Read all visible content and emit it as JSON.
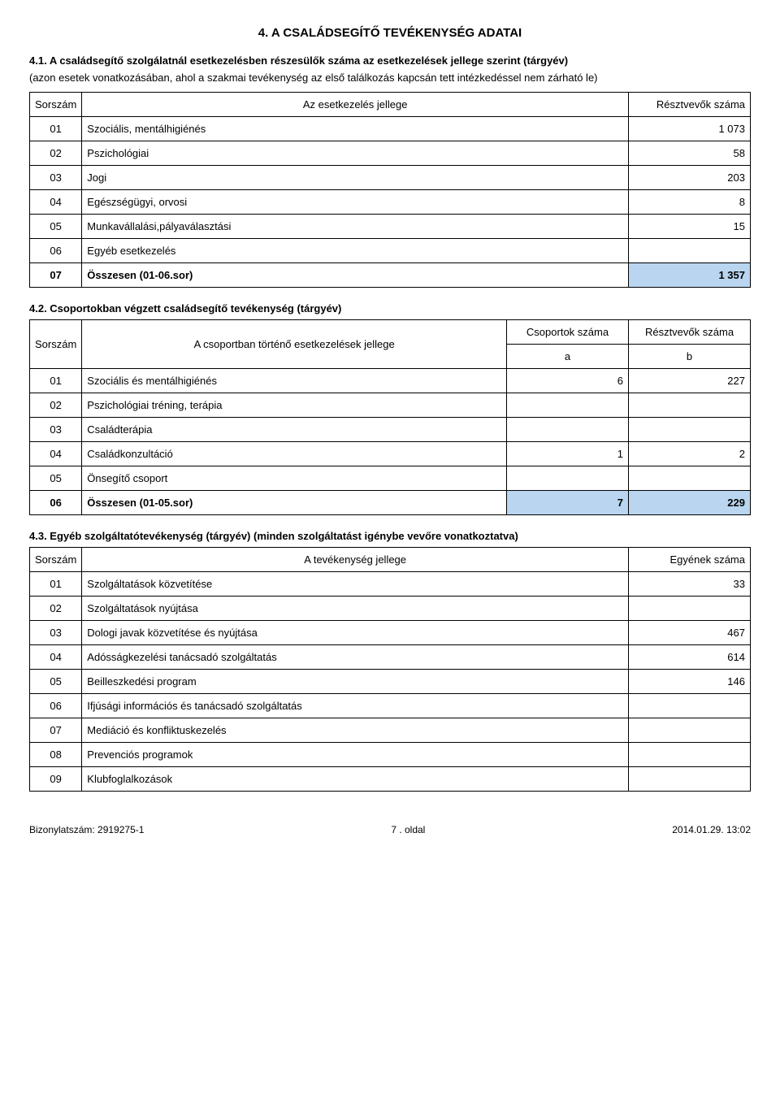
{
  "section_title": "4. A CSALÁDSEGÍTŐ TEVÉKENYSÉG ADATAI",
  "t41": {
    "title": "4.1. A családsegítő szolgálatnál esetkezelésben részesülők száma az esetkezelések jellege szerint (tárgyév)",
    "note": "(azon esetek vonatkozásában, ahol a szakmai tevékenység az első találkozás kapcsán tett intézkedéssel nem zárható le)",
    "headers": {
      "c0": "Sorszám",
      "c1": "Az esetkezelés jellege",
      "c2": "Résztvevők száma"
    },
    "rows": [
      {
        "n": "01",
        "label": "Szociális, mentálhigiénés",
        "val": "1 073"
      },
      {
        "n": "02",
        "label": "Pszichológiai",
        "val": "58"
      },
      {
        "n": "03",
        "label": "Jogi",
        "val": "203"
      },
      {
        "n": "04",
        "label": "Egészségügyi, orvosi",
        "val": "8"
      },
      {
        "n": "05",
        "label": "Munkavállalási,pályaválasztási",
        "val": "15"
      },
      {
        "n": "06",
        "label": "Egyéb esetkezelés",
        "val": ""
      },
      {
        "n": "07",
        "label": "Összesen (01-06.sor)",
        "val": "1 357",
        "bold": true,
        "hl": true
      }
    ]
  },
  "t42": {
    "title": "4.2. Csoportokban végzett családsegítő tevékenység (tárgyév)",
    "headers": {
      "c0": "Sorszám",
      "c1": "A csoportban történő esetkezelések jellege",
      "c2": "Csoportok száma",
      "c3": "Résztvevők száma",
      "sa": "a",
      "sb": "b"
    },
    "rows": [
      {
        "n": "01",
        "label": "Szociális és mentálhigiénés",
        "a": "6",
        "b": "227"
      },
      {
        "n": "02",
        "label": "Pszichológiai tréning, terápia",
        "a": "",
        "b": ""
      },
      {
        "n": "03",
        "label": "Családterápia",
        "a": "",
        "b": ""
      },
      {
        "n": "04",
        "label": "Családkonzultáció",
        "a": "1",
        "b": "2"
      },
      {
        "n": "05",
        "label": "Önsegítő csoport",
        "a": "",
        "b": ""
      },
      {
        "n": "06",
        "label": "Összesen (01-05.sor)",
        "a": "7",
        "b": "229",
        "bold": true,
        "hl": true
      }
    ]
  },
  "t43": {
    "title": "4.3. Egyéb szolgáltatótevékenység (tárgyév) (minden szolgáltatást igénybe vevőre vonatkoztatva)",
    "headers": {
      "c0": "Sorszám",
      "c1": "A tevékenység jellege",
      "c2": "Egyének száma"
    },
    "rows": [
      {
        "n": "01",
        "label": "Szolgáltatások közvetítése",
        "val": "33"
      },
      {
        "n": "02",
        "label": "Szolgáltatások nyújtása",
        "val": ""
      },
      {
        "n": "03",
        "label": "Dologi javak közvetítése és nyújtása",
        "val": "467"
      },
      {
        "n": "04",
        "label": "Adósságkezelési tanácsadó szolgáltatás",
        "val": "614"
      },
      {
        "n": "05",
        "label": "Beilleszkedési program",
        "val": "146"
      },
      {
        "n": "06",
        "label": "Ifjúsági információs és tanácsadó szolgáltatás",
        "val": ""
      },
      {
        "n": "07",
        "label": "Mediáció és konfliktuskezelés",
        "val": ""
      },
      {
        "n": "08",
        "label": "Prevenciós programok",
        "val": ""
      },
      {
        "n": "09",
        "label": "Klubfoglalkozások",
        "val": ""
      }
    ]
  },
  "footer": {
    "left": "Bizonylatszám: 2919275-1",
    "center": "7 . oldal",
    "right": "2014.01.29. 13:02"
  },
  "style": {
    "highlight_bg": "#b9d5f0",
    "border_color": "#000000",
    "background": "#ffffff",
    "text_color": "#000000"
  }
}
